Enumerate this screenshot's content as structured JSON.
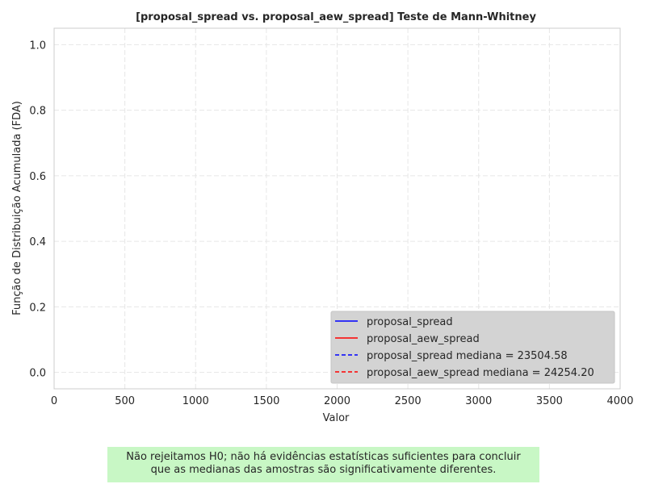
{
  "chart_data": {
    "type": "line",
    "title": "[proposal_spread vs. proposal_aew_spread] Teste de Mann-Whitney",
    "xlabel": "Valor",
    "ylabel": "Função de Distribuição Acumulada (FDA)",
    "xlim": [
      0,
      4000
    ],
    "ylim": [
      -0.05,
      1.05
    ],
    "x_ticks": [
      0,
      500,
      1000,
      1500,
      2000,
      2500,
      3000,
      3500,
      4000
    ],
    "y_ticks": [
      0.0,
      0.2,
      0.4,
      0.6,
      0.8,
      1.0
    ],
    "x_tick_labels": [
      "0",
      "500",
      "1000",
      "1500",
      "2000",
      "2500",
      "3000",
      "3500",
      "4000"
    ],
    "y_tick_labels": [
      "0.0",
      "0.2",
      "0.4",
      "0.6",
      "0.8",
      "1.0"
    ],
    "grid": true,
    "legend_position": "bottom-right",
    "series": [
      {
        "name": "proposal_spread",
        "style": "solid",
        "color": "#0000ff",
        "x": [],
        "y": []
      },
      {
        "name": "proposal_aew_spread",
        "style": "solid",
        "color": "#ff0000",
        "x": [],
        "y": []
      }
    ],
    "median_lines": [
      {
        "name": "proposal_spread mediana = 23504.58",
        "value": 23504.58,
        "style": "dashed",
        "color": "#0000ff"
      },
      {
        "name": "proposal_aew_spread mediana = 24254.20",
        "value": 24254.2,
        "style": "dashed",
        "color": "#ff0000"
      }
    ]
  },
  "note": {
    "line1": "Não rejeitamos H0; não há evidências estatísticas suficientes para concluir",
    "line2": "que as medianas das amostras são significativamente diferentes.",
    "background": "#c8f7c5"
  }
}
